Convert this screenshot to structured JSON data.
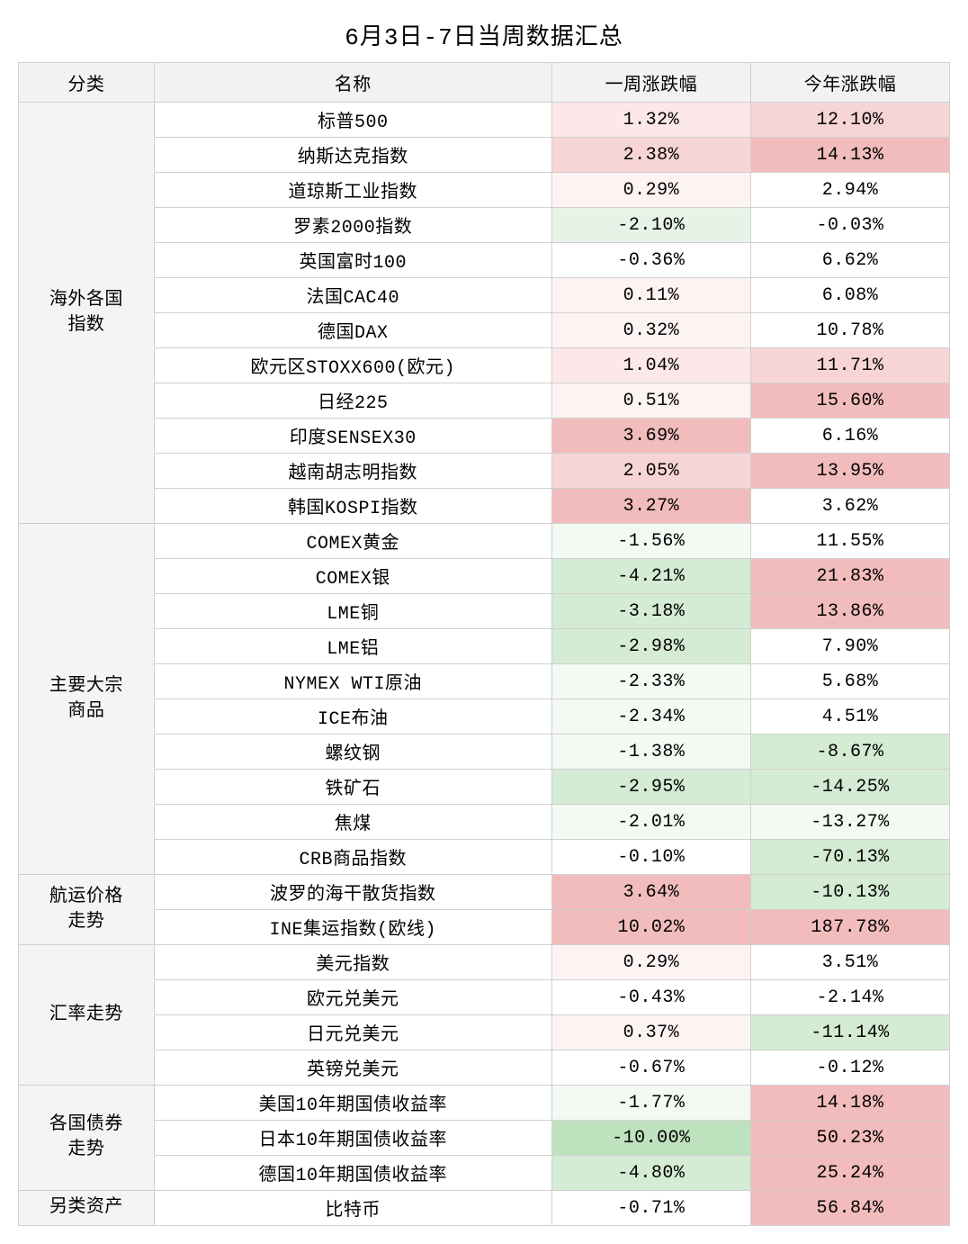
{
  "title": "6月3日-7日当周数据汇总",
  "columns": [
    "分类",
    "名称",
    "一周涨跌幅",
    "今年涨跌幅"
  ],
  "heat": {
    "pos": [
      "#ffffff",
      "#fdf3f3",
      "#fce8e8",
      "#f8d5d5",
      "#f2bcbc"
    ],
    "neg": [
      "#ffffff",
      "#f3f9f3",
      "#e7f3e7",
      "#d4ebd4",
      "#bde2bd"
    ]
  },
  "groups": [
    {
      "category": "海外各国指数",
      "cat_lines": [
        "海外各国",
        "指数"
      ],
      "rows": [
        {
          "name": "标普500",
          "w": "1.32%",
          "wL": 2,
          "y": "12.10%",
          "yL": 3
        },
        {
          "name": "纳斯达克指数",
          "w": "2.38%",
          "wL": 3,
          "y": "14.13%",
          "yL": 4
        },
        {
          "name": "道琼斯工业指数",
          "w": "0.29%",
          "wL": 1,
          "y": "2.94%",
          "yL": 0
        },
        {
          "name": "罗素2000指数",
          "w": "-2.10%",
          "wL": -2,
          "y": "-0.03%",
          "yL": 0
        },
        {
          "name": "英国富时100",
          "w": "-0.36%",
          "wL": 0,
          "y": "6.62%",
          "yL": 0
        },
        {
          "name": "法国CAC40",
          "w": "0.11%",
          "wL": 1,
          "y": "6.08%",
          "yL": 0
        },
        {
          "name": "德国DAX",
          "w": "0.32%",
          "wL": 1,
          "y": "10.78%",
          "yL": 0
        },
        {
          "name": "欧元区STOXX600(欧元)",
          "w": "1.04%",
          "wL": 2,
          "y": "11.71%",
          "yL": 3
        },
        {
          "name": "日经225",
          "w": "0.51%",
          "wL": 1,
          "y": "15.60%",
          "yL": 4
        },
        {
          "name": "印度SENSEX30",
          "w": "3.69%",
          "wL": 4,
          "y": "6.16%",
          "yL": 0
        },
        {
          "name": "越南胡志明指数",
          "w": "2.05%",
          "wL": 3,
          "y": "13.95%",
          "yL": 4
        },
        {
          "name": "韩国KOSPI指数",
          "w": "3.27%",
          "wL": 4,
          "y": "3.62%",
          "yL": 0
        }
      ]
    },
    {
      "category": "主要大宗商品",
      "cat_lines": [
        "主要大宗",
        "商品"
      ],
      "rows": [
        {
          "name": "COMEX黄金",
          "w": "-1.56%",
          "wL": -1,
          "y": "11.55%",
          "yL": 0
        },
        {
          "name": "COMEX银",
          "w": "-4.21%",
          "wL": -3,
          "y": "21.83%",
          "yL": 4
        },
        {
          "name": "LME铜",
          "w": "-3.18%",
          "wL": -3,
          "y": "13.86%",
          "yL": 4
        },
        {
          "name": "LME铝",
          "w": "-2.98%",
          "wL": -3,
          "y": "7.90%",
          "yL": 0
        },
        {
          "name": "NYMEX WTI原油",
          "w": "-2.33%",
          "wL": -1,
          "y": "5.68%",
          "yL": 0
        },
        {
          "name": "ICE布油",
          "w": "-2.34%",
          "wL": -1,
          "y": "4.51%",
          "yL": 0
        },
        {
          "name": "螺纹钢",
          "w": "-1.38%",
          "wL": -1,
          "y": "-8.67%",
          "yL": -3
        },
        {
          "name": "铁矿石",
          "w": "-2.95%",
          "wL": -3,
          "y": "-14.25%",
          "yL": -3
        },
        {
          "name": "焦煤",
          "w": "-2.01%",
          "wL": -1,
          "y": "-13.27%",
          "yL": -1
        },
        {
          "name": "CRB商品指数",
          "w": "-0.10%",
          "wL": 0,
          "y": "-70.13%",
          "yL": -3
        }
      ]
    },
    {
      "category": "航运价格走势",
      "cat_lines": [
        "航运价格",
        "走势"
      ],
      "rows": [
        {
          "name": "波罗的海干散货指数",
          "w": "3.64%",
          "wL": 4,
          "y": "-10.13%",
          "yL": -3
        },
        {
          "name": "INE集运指数(欧线)",
          "w": "10.02%",
          "wL": 4,
          "y": "187.78%",
          "yL": 4
        }
      ]
    },
    {
      "category": "汇率走势",
      "cat_lines": [
        "汇率走势"
      ],
      "rows": [
        {
          "name": "美元指数",
          "w": "0.29%",
          "wL": 1,
          "y": "3.51%",
          "yL": 0
        },
        {
          "name": "欧元兑美元",
          "w": "-0.43%",
          "wL": 0,
          "y": "-2.14%",
          "yL": 0
        },
        {
          "name": "日元兑美元",
          "w": "0.37%",
          "wL": 1,
          "y": "-11.14%",
          "yL": -3
        },
        {
          "name": "英镑兑美元",
          "w": "-0.67%",
          "wL": 0,
          "y": "-0.12%",
          "yL": 0
        }
      ]
    },
    {
      "category": "各国债券走势",
      "cat_lines": [
        "各国债券",
        "走势"
      ],
      "rows": [
        {
          "name": "美国10年期国债收益率",
          "w": "-1.77%",
          "wL": -1,
          "y": "14.18%",
          "yL": 4
        },
        {
          "name": "日本10年期国债收益率",
          "w": "-10.00%",
          "wL": -4,
          "y": "50.23%",
          "yL": 4
        },
        {
          "name": "德国10年期国债收益率",
          "w": "-4.80%",
          "wL": -3,
          "y": "25.24%",
          "yL": 4
        }
      ]
    },
    {
      "category": "另类资产",
      "cat_lines": [
        "另类资产"
      ],
      "rows": [
        {
          "name": "比特币",
          "w": "-0.71%",
          "wL": 0,
          "y": "56.84%",
          "yL": 4
        }
      ]
    }
  ]
}
